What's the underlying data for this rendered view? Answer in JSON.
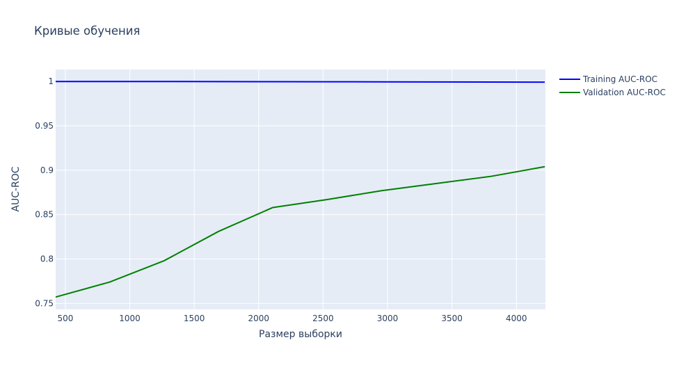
{
  "chart_data": {
    "type": "line",
    "title": "Кривые обучения",
    "xlabel": "Размер выборки",
    "ylabel": "AUC-ROC",
    "xlim": [
      425,
      4225
    ],
    "ylim": [
      0.7432,
      1.0135
    ],
    "x_ticks": [
      "500",
      "1000",
      "1500",
      "2000",
      "2500",
      "3000",
      "3500",
      "4000"
    ],
    "y_ticks": [
      "0.75",
      "0.8",
      "0.85",
      "0.9",
      "0.95",
      "1"
    ],
    "grid": true,
    "legend_position": "top-right",
    "x": [
      422,
      844,
      1266,
      1688,
      2110,
      2532,
      2954,
      3376,
      3798,
      4220
    ],
    "series": [
      {
        "name": "Training AUC-ROC",
        "color": "#0000ff",
        "values": [
          1.0,
          1.0,
          1.0,
          0.9999,
          0.9998,
          0.9997,
          0.9996,
          0.9995,
          0.9994,
          0.9993
        ]
      },
      {
        "name": "Validation AUC-ROC",
        "color": "#008000",
        "values": [
          0.757,
          0.774,
          0.798,
          0.831,
          0.858,
          0.867,
          0.877,
          0.885,
          0.893,
          0.904
        ]
      }
    ]
  }
}
